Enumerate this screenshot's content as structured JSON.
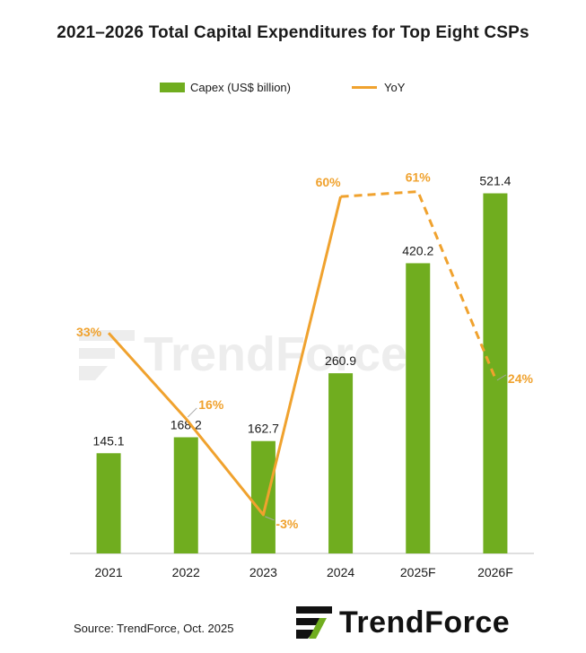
{
  "chart_data": {
    "type": "bar",
    "title": "2021–2026 Total Capital Expenditures  for Top Eight CSPs",
    "categories": [
      "2021",
      "2022",
      "2023",
      "2024",
      "2025F",
      "2026F"
    ],
    "series": [
      {
        "name": "Capex (US$ billion)",
        "type": "bar",
        "color": "#70ad1f",
        "values": [
          145.1,
          168.2,
          162.7,
          260.9,
          420.2,
          521.4
        ],
        "labels": [
          "145.1",
          "168.2",
          "162.7",
          "260.9",
          "420.2",
          "521.4"
        ]
      },
      {
        "name": "YoY",
        "type": "line",
        "color": "#f0a22e",
        "values": [
          33,
          16,
          -3,
          60,
          61,
          24
        ],
        "labels": [
          "33%",
          "16%",
          "-3%",
          "60%",
          "61%",
          "24%"
        ],
        "forecast_dashed_from_index": 3
      }
    ],
    "legend_position": "top",
    "grid": false
  },
  "source": "Source: TrendForce, Oct. 2025",
  "watermark_text": "TrendForce",
  "logo": {
    "text": "TrendForce",
    "icon": "trendforce-logo-icon"
  }
}
